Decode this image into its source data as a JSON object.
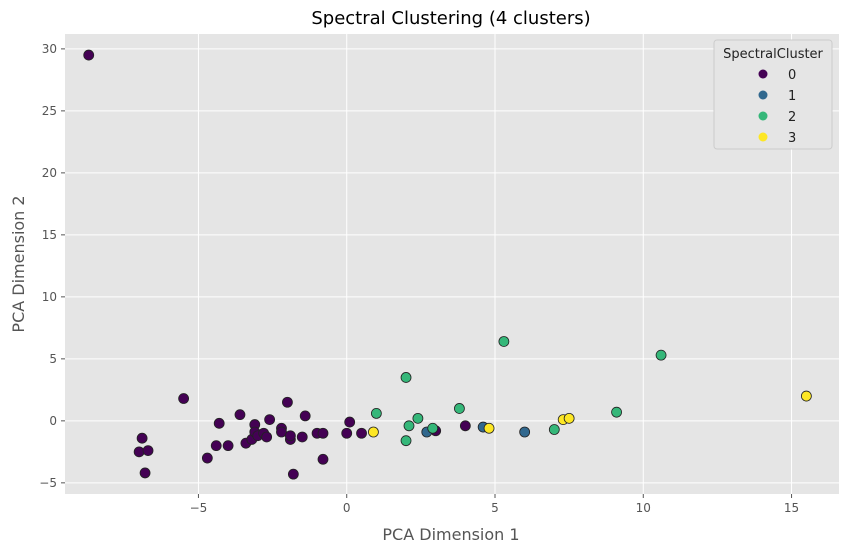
{
  "chart_data": {
    "type": "scatter",
    "title": "Spectral Clustering (4 clusters)",
    "xlabel": "PCA Dimension 1",
    "ylabel": "PCA Dimension 2",
    "xlim": [
      -9.5,
      16.6
    ],
    "ylim": [
      -5.9,
      31.2
    ],
    "xticks": [
      -5,
      0,
      5,
      10,
      15
    ],
    "yticks": [
      -5,
      0,
      5,
      10,
      15,
      20,
      25,
      30
    ],
    "grid": true,
    "legend": {
      "title": "SpectralCluster",
      "placement": "top-right"
    },
    "series": [
      {
        "name": "0",
        "color": "#440154",
        "points": [
          [
            -8.7,
            29.5
          ],
          [
            -5.5,
            1.8
          ],
          [
            -7.0,
            -2.5
          ],
          [
            -6.9,
            -1.4
          ],
          [
            -6.7,
            -2.4
          ],
          [
            -6.8,
            -4.2
          ],
          [
            -4.7,
            -3.0
          ],
          [
            -4.4,
            -2.0
          ],
          [
            -4.3,
            -0.2
          ],
          [
            -4.0,
            -2.0
          ],
          [
            -3.6,
            0.5
          ],
          [
            -3.4,
            -1.8
          ],
          [
            -3.2,
            -1.5
          ],
          [
            -3.1,
            -0.3
          ],
          [
            -3.1,
            -0.9
          ],
          [
            -3.0,
            -1.2
          ],
          [
            -2.8,
            -1.0
          ],
          [
            -2.7,
            -1.3
          ],
          [
            -2.6,
            0.1
          ],
          [
            -2.2,
            -0.6
          ],
          [
            -2.2,
            -0.9
          ],
          [
            -2.0,
            1.5
          ],
          [
            -1.9,
            -1.5
          ],
          [
            -1.9,
            -1.2
          ],
          [
            -1.8,
            -4.3
          ],
          [
            -1.5,
            -1.3
          ],
          [
            -1.4,
            0.4
          ],
          [
            -1.0,
            -1.0
          ],
          [
            -0.8,
            -1.0
          ],
          [
            -0.8,
            -3.1
          ],
          [
            0.0,
            -1.0
          ],
          [
            0.1,
            -0.1
          ],
          [
            0.5,
            -1.0
          ],
          [
            3.0,
            -0.8
          ],
          [
            4.0,
            -0.4
          ]
        ]
      },
      {
        "name": "1",
        "color": "#31688e",
        "points": [
          [
            2.7,
            -0.9
          ],
          [
            4.6,
            -0.5
          ],
          [
            6.0,
            -0.9
          ]
        ]
      },
      {
        "name": "2",
        "color": "#35b779",
        "points": [
          [
            1.0,
            0.6
          ],
          [
            2.0,
            3.5
          ],
          [
            2.1,
            -0.4
          ],
          [
            2.0,
            -1.6
          ],
          [
            2.4,
            0.2
          ],
          [
            2.9,
            -0.6
          ],
          [
            3.8,
            1.0
          ],
          [
            5.3,
            6.4
          ],
          [
            7.0,
            -0.7
          ],
          [
            9.1,
            0.7
          ],
          [
            10.6,
            5.3
          ]
        ]
      },
      {
        "name": "3",
        "color": "#fde725",
        "points": [
          [
            0.9,
            -0.9
          ],
          [
            4.8,
            -0.6
          ],
          [
            7.3,
            0.1
          ],
          [
            7.5,
            0.2
          ],
          [
            15.5,
            2.0
          ]
        ]
      }
    ]
  }
}
